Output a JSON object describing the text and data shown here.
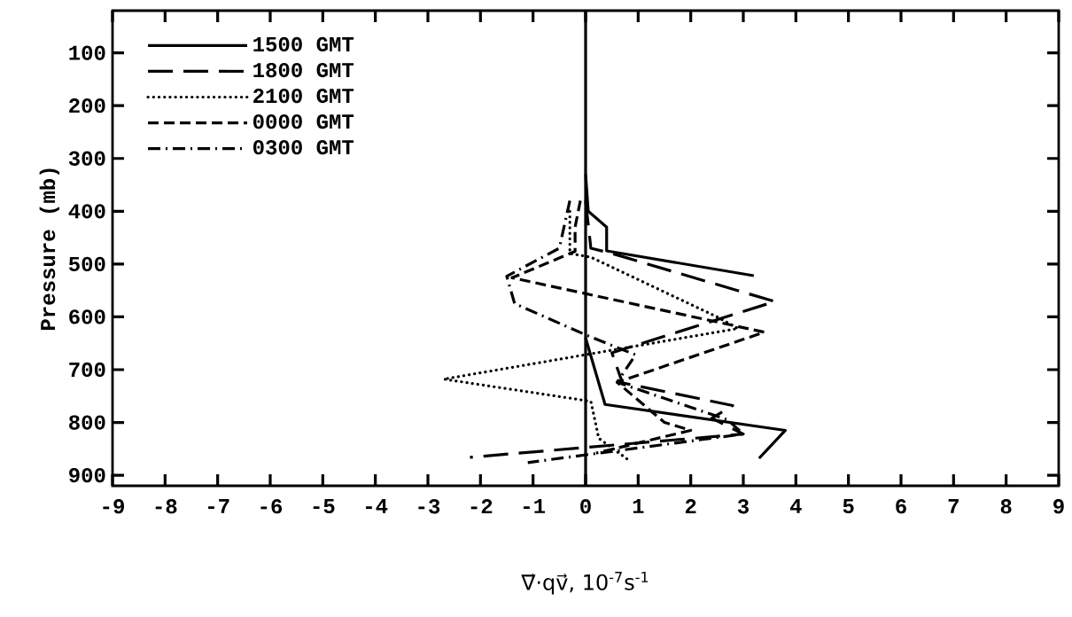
{
  "chart_data": {
    "type": "line",
    "xlabel": "∇⃗·qv⃗, 10$^{-7}$s$^{-1}$",
    "ylabel": "Pressure (mb)",
    "xlim": [
      -9,
      9
    ],
    "ylim": [
      920,
      20
    ],
    "xticks": [
      -9,
      -8,
      -7,
      -6,
      -5,
      -4,
      -3,
      -2,
      -1,
      0,
      1,
      2,
      3,
      4,
      5,
      6,
      7,
      8,
      9
    ],
    "yticks": [
      100,
      200,
      300,
      400,
      500,
      600,
      700,
      800,
      900
    ],
    "legend": "top left",
    "grid": false,
    "marker": "none",
    "ref_lines": [
      {
        "axis": "x",
        "value": 0,
        "color": "#000000",
        "line_style": "solid"
      }
    ],
    "series": [
      {
        "name": "1500 GMT",
        "color": "#000000",
        "line_style": "solid",
        "x": [
          0,
          0.05,
          0.4,
          0.4,
          3.2,
          null,
          0,
          0.37,
          3.8,
          3.3
        ],
        "values": [
          330,
          400,
          430,
          475,
          522,
          null,
          640,
          766,
          815,
          868
        ]
      },
      {
        "name": "1800 GMT",
        "color": "#000000",
        "line_style": "longdashed",
        "x": [
          0,
          0.1,
          0.5,
          3.6,
          0.5,
          0.7,
          2.8,
          2.4,
          3.0,
          -2.2
        ],
        "values": [
          380,
          470,
          480,
          571,
          668,
          725,
          768,
          792,
          822,
          866
        ]
      },
      {
        "name": "2100 GMT",
        "color": "#000000",
        "line_style": "dotted",
        "x": [
          -0.3,
          -0.3,
          0.1,
          2.5,
          2.9,
          -2.7,
          0.1,
          0.25,
          0.8
        ],
        "values": [
          400,
          480,
          487,
          600,
          622,
          718,
          760,
          830,
          870
        ]
      },
      {
        "name": "0000 GMT",
        "color": "#000000",
        "line_style": "dashed",
        "x": [
          -0.1,
          -0.2,
          -0.2,
          -1.4,
          3.4,
          0.6,
          1.5,
          2.0,
          0.2
        ],
        "values": [
          380,
          430,
          476,
          526,
          629,
          724,
          800,
          815,
          858
        ]
      },
      {
        "name": "0300 GMT",
        "color": "#000000",
        "line_style": "dashdot",
        "x": [
          -0.3,
          -0.5,
          -1.5,
          -1.35,
          0,
          0.95,
          0.6,
          2.7,
          3.0,
          -1.1
        ],
        "values": [
          380,
          470,
          523,
          575,
          634,
          672,
          724,
          795,
          822,
          876
        ]
      }
    ]
  }
}
